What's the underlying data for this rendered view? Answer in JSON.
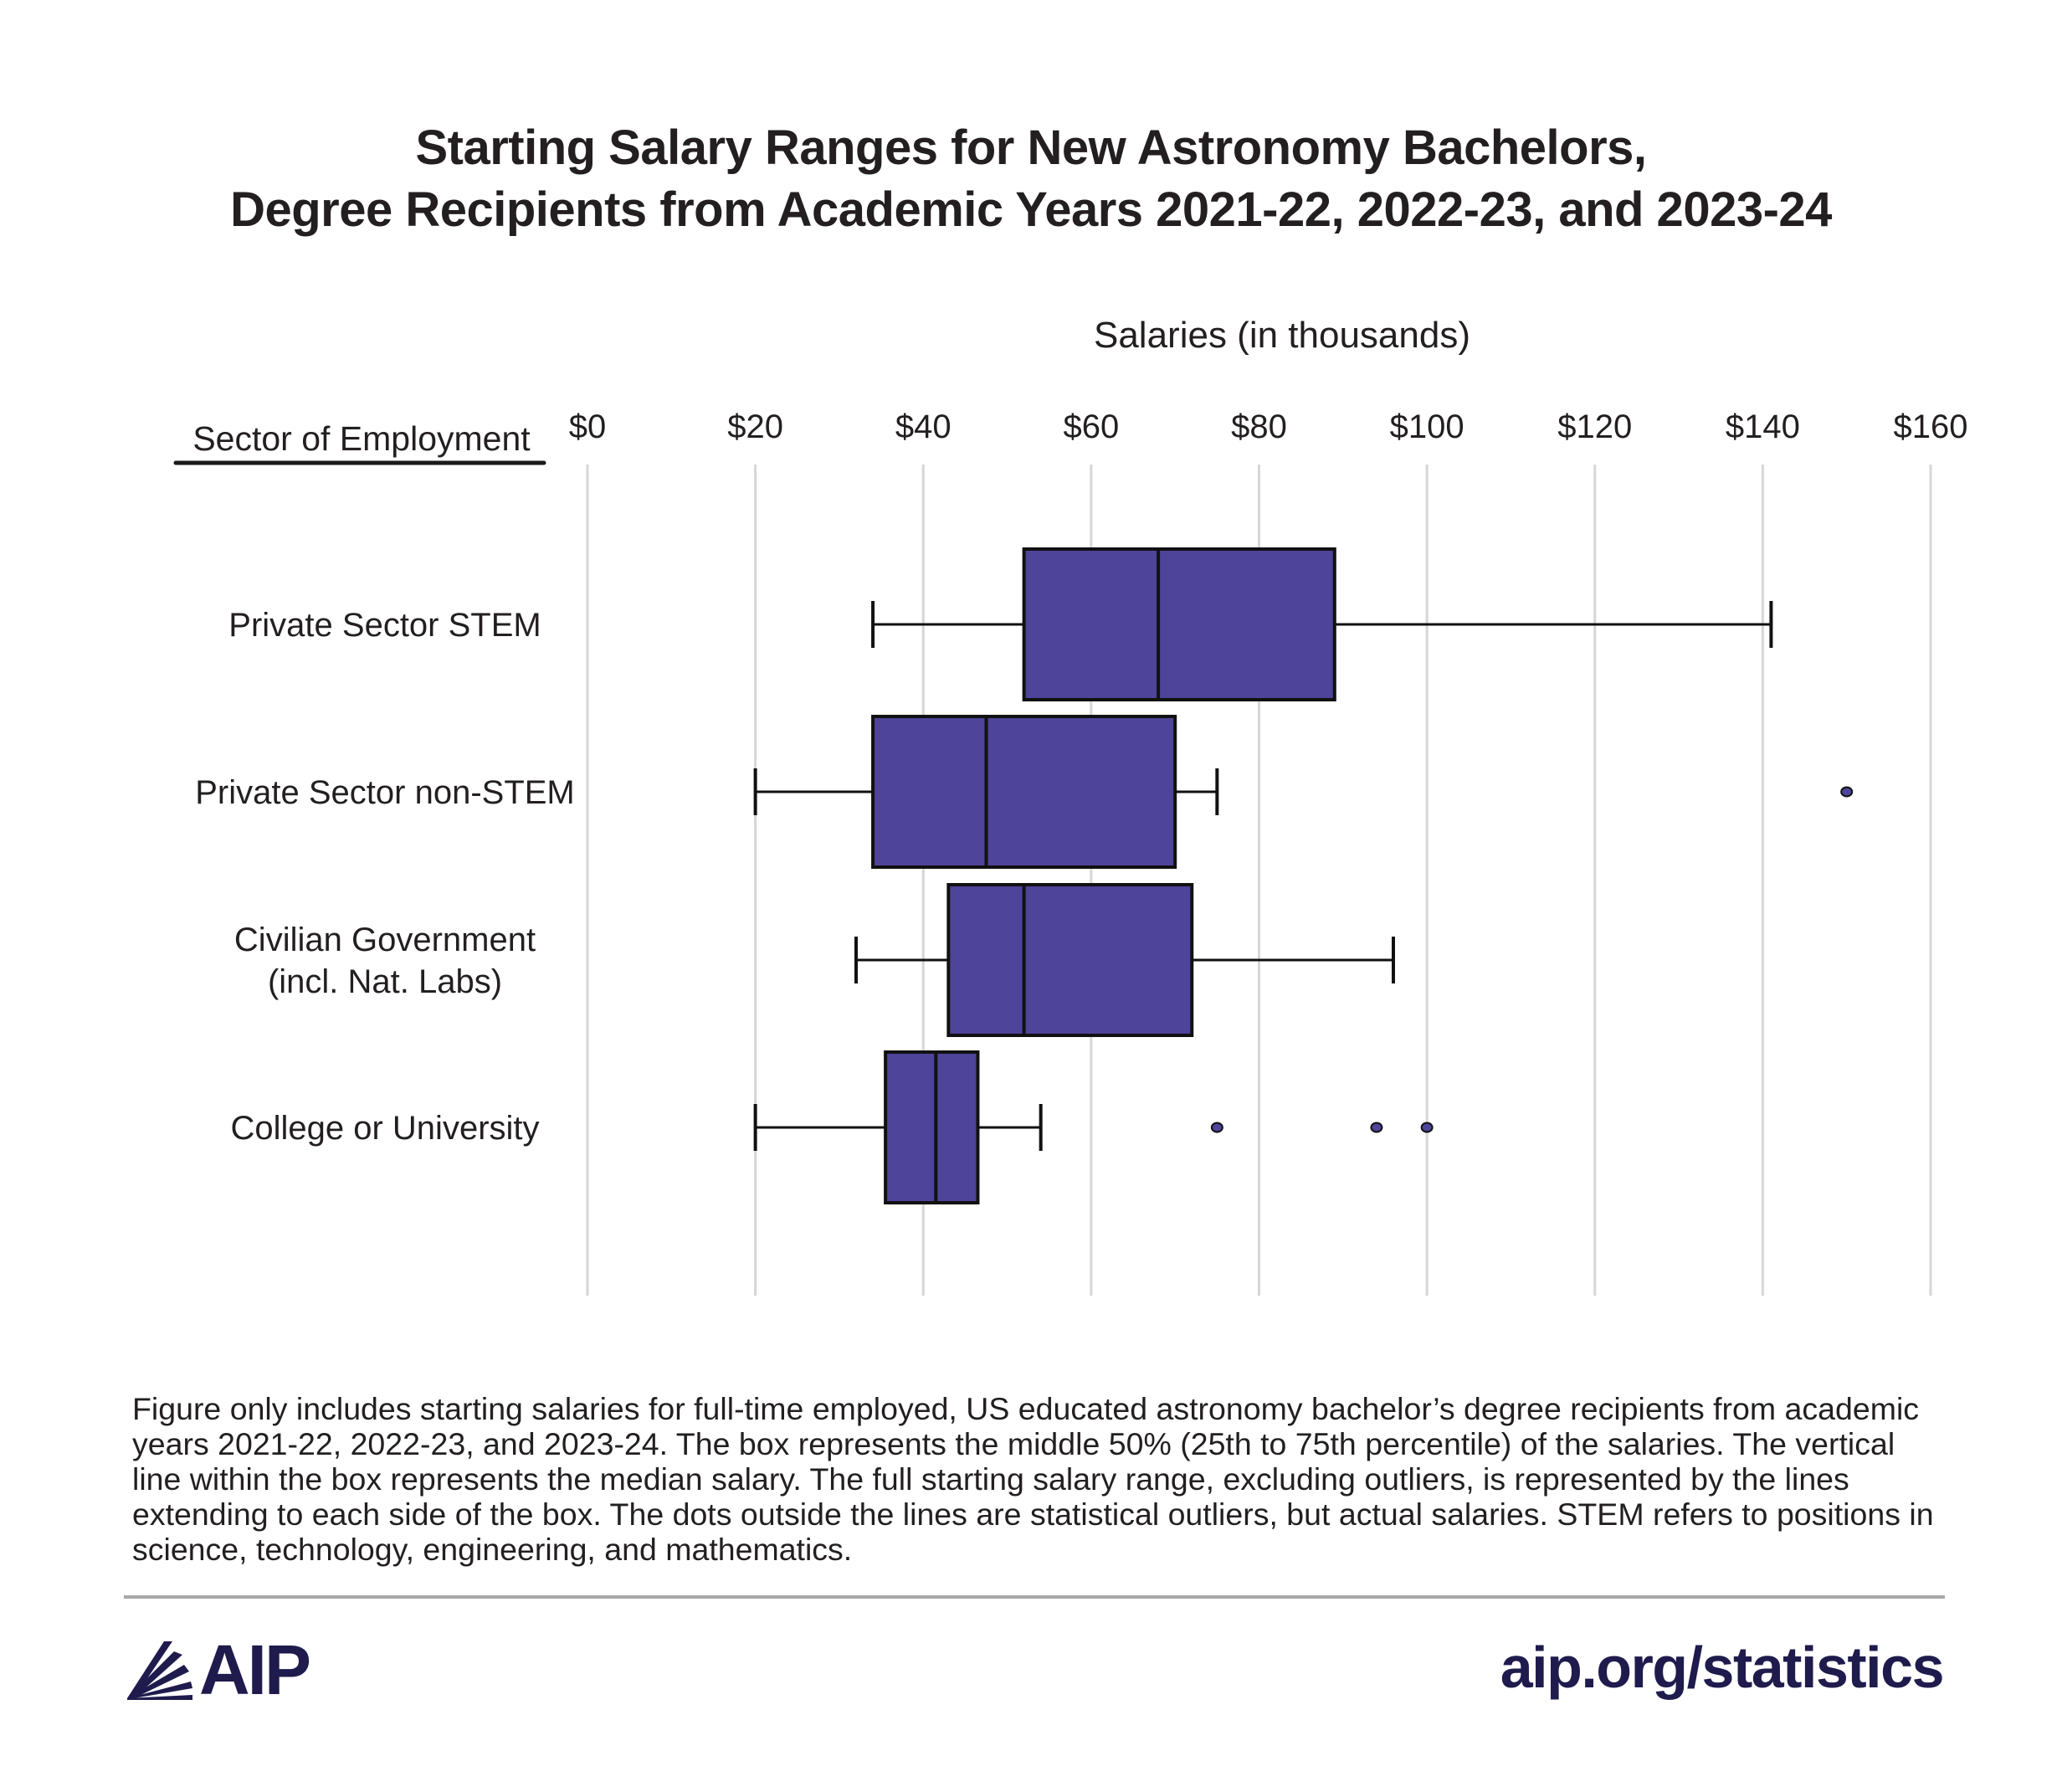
{
  "title_lines": [
    "Starting Salary Ranges for New Astronomy Bachelors,",
    "Degree Recipients from Academic Years 2021-22, 2022-23, and 2023-24"
  ],
  "note": "Figure only includes starting salaries for full-time employed, US educated astronomy bachelor’s degree recipients from academic years 2021-22, 2022-23, and 2023-24. The box represents the middle 50% (25th to 75th percentile) of the salaries. The vertical line within the box represents the median salary. The full starting salary range, excluding outliers, is represented by the lines extending to each side of the box. The dots outside the lines are statistical outliers, but actual salaries. STEM refers to positions in science, technology, engineering, and mathematics.",
  "logo_text": "AIP",
  "site": "aip.org/statistics",
  "colors": {
    "box_fill": "#4e4499",
    "stroke": "#111111",
    "grid": "#d6d6d6",
    "brand": "#1f1b4d"
  },
  "icons": {
    "logo": "aip-rays-logo-icon"
  },
  "chart_data": {
    "type": "boxplot",
    "orientation": "horizontal",
    "xlabel": "Salaries (in thousands)",
    "ylabel": "Sector of Employment",
    "xlim": [
      0,
      160
    ],
    "x_ticks": [
      0,
      20,
      40,
      60,
      80,
      100,
      120,
      140,
      160
    ],
    "x_tick_labels": [
      "$0",
      "$20",
      "$40",
      "$60",
      "$80",
      "$100",
      "$120",
      "$140",
      "$160"
    ],
    "grid": "vertical",
    "categories": [
      [
        "Private Sector STEM"
      ],
      [
        "Private Sector non-STEM"
      ],
      [
        "Civilian Government",
        "(incl. Nat. Labs)"
      ],
      [
        "College or University"
      ]
    ],
    "boxes": [
      {
        "whisker_low": 34,
        "q1": 52,
        "median": 68,
        "q3": 89,
        "whisker_high": 141,
        "outliers": []
      },
      {
        "whisker_low": 20,
        "q1": 34,
        "median": 47.5,
        "q3": 70,
        "whisker_high": 75,
        "outliers": [
          150
        ]
      },
      {
        "whisker_low": 32,
        "q1": 43,
        "median": 52,
        "q3": 72,
        "whisker_high": 96,
        "outliers": []
      },
      {
        "whisker_low": 20,
        "q1": 35.5,
        "median": 41.5,
        "q3": 46.5,
        "whisker_high": 54,
        "outliers": [
          75,
          94,
          100
        ]
      }
    ]
  }
}
